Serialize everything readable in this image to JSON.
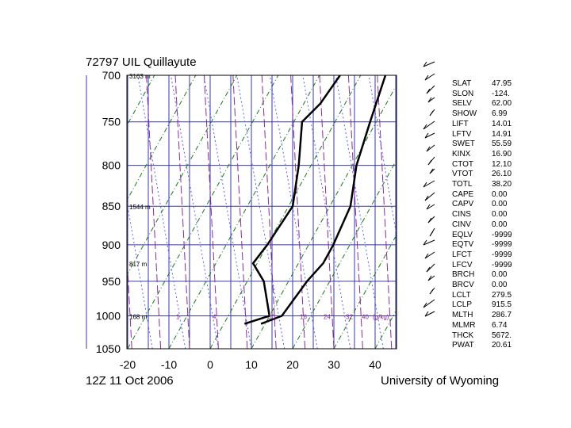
{
  "header": {
    "title": "72797 UIL Quillayute"
  },
  "footer": {
    "time": "12Z 11 Oct 2006",
    "org": "University of Wyoming"
  },
  "chart_data": {
    "type": "line",
    "title": "72797 UIL Quillayute",
    "y_pressure_ticks": [
      700,
      750,
      800,
      850,
      900,
      950,
      1000,
      1050
    ],
    "x_temp_ticks": [
      -20,
      -10,
      0,
      10,
      20,
      30,
      40
    ],
    "ylim": [
      700,
      1050
    ],
    "xlim": [
      -20,
      46
    ],
    "height_labels": [
      {
        "p": 700,
        "text": "3163 m"
      },
      {
        "p": 850,
        "text": "1544 m"
      },
      {
        "p": 925,
        "text": "817 m"
      },
      {
        "p": 1000,
        "text": "168 m"
      }
    ],
    "mixing_ratio_labels": [
      "1",
      "4",
      "10",
      "16",
      "24",
      "32",
      "40",
      "(g/kg)"
    ],
    "series": [
      {
        "values_temperature": [
          [
            700,
            6
          ],
          [
            750,
            8.5
          ],
          [
            800,
            11
          ],
          [
            850,
            15
          ],
          [
            900,
            16
          ],
          [
            925,
            16
          ],
          [
            950,
            14.5
          ],
          [
            1000,
            13
          ],
          [
            1012,
            9
          ]
        ]
      },
      {
        "values_dewpoint": [
          [
            700,
            -5
          ],
          [
            730,
            -6
          ],
          [
            750,
            -8
          ],
          [
            800,
            -3
          ],
          [
            850,
            1
          ],
          [
            900,
            0
          ],
          [
            925,
            -1
          ],
          [
            950,
            4
          ],
          [
            1000,
            10
          ],
          [
            1012,
            5
          ]
        ]
      }
    ],
    "grid": true,
    "wind_barbs_side": "right"
  },
  "indices": [
    {
      "name": "SLAT",
      "value": "47.95"
    },
    {
      "name": "SLON",
      "value": "-124."
    },
    {
      "name": "SELV",
      "value": "62.00"
    },
    {
      "name": "SHOW",
      "value": "6.99"
    },
    {
      "name": "LIFT",
      "value": "14.01"
    },
    {
      "name": "LFTV",
      "value": "14.91"
    },
    {
      "name": "SWET",
      "value": "55.59"
    },
    {
      "name": "KINX",
      "value": "16.90"
    },
    {
      "name": "CTOT",
      "value": "12.10"
    },
    {
      "name": "VTOT",
      "value": "26.10"
    },
    {
      "name": "TOTL",
      "value": "38.20"
    },
    {
      "name": "CAPE",
      "value": "0.00"
    },
    {
      "name": "CAPV",
      "value": "0.00"
    },
    {
      "name": "CINS",
      "value": "0.00"
    },
    {
      "name": "CINV",
      "value": "0.00"
    },
    {
      "name": "EQLV",
      "value": "-9999"
    },
    {
      "name": "EQTV",
      "value": "-9999"
    },
    {
      "name": "LFCT",
      "value": "-9999"
    },
    {
      "name": "LFCV",
      "value": "-9999"
    },
    {
      "name": "BRCH",
      "value": "0.00"
    },
    {
      "name": "BRCV",
      "value": "0.00"
    },
    {
      "name": "LCLT",
      "value": "279.5"
    },
    {
      "name": "LCLP",
      "value": "915.5"
    },
    {
      "name": "MLTH",
      "value": "286.7"
    },
    {
      "name": "MLMR",
      "value": "6.74"
    },
    {
      "name": "THCK",
      "value": "5672."
    },
    {
      "name": "PWAT",
      "value": "20.61"
    }
  ]
}
